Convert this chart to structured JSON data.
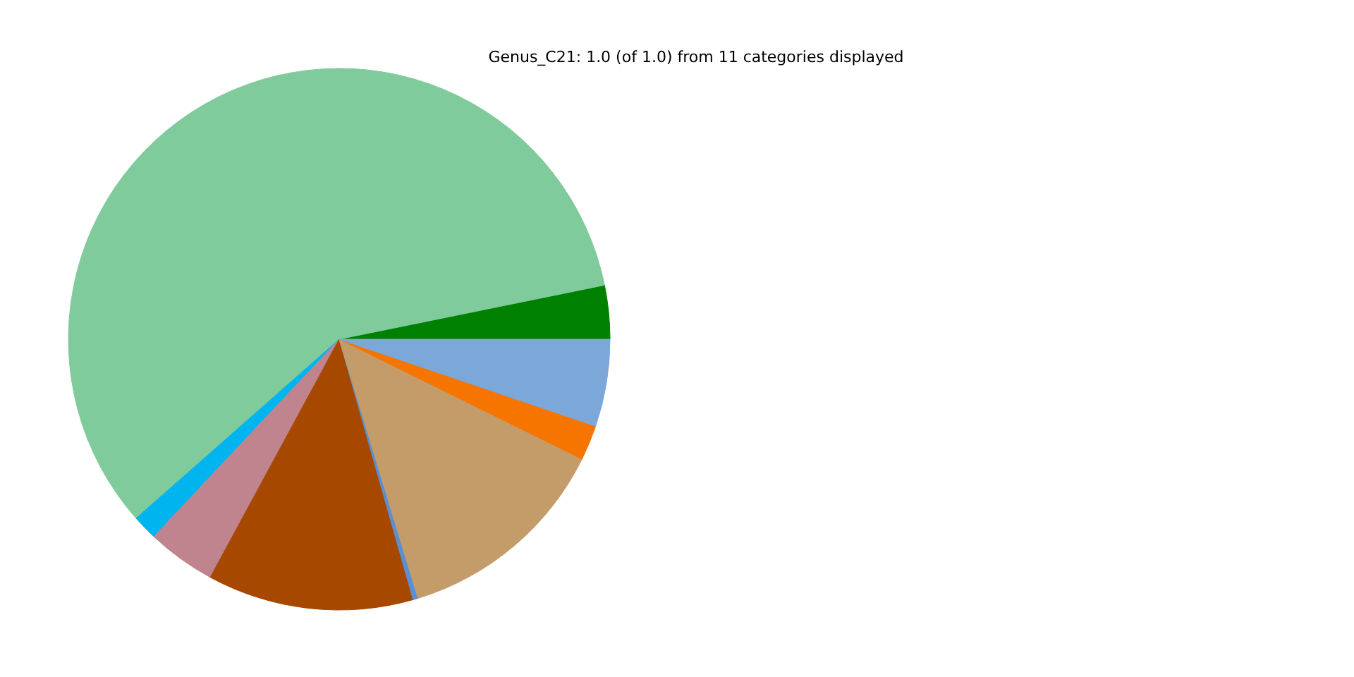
{
  "chart_data": {
    "type": "pie",
    "title": "Genus_C21: 1.0 (of 1.0) from 11 categories displayed",
    "categories": [
      null,
      null,
      null,
      null,
      null,
      null,
      null,
      null,
      null
    ],
    "values": [
      3.2,
      58.3,
      1.5,
      4.1,
      12.3,
      0.3,
      13.0,
      2.1,
      5.2
    ],
    "colors": [
      "#008000",
      "#80cb9b",
      "#00b4f0",
      "#c0848f",
      "#a64800",
      "#5b8fd0",
      "#c49c6a",
      "#f57500",
      "#7ba7d9"
    ]
  }
}
